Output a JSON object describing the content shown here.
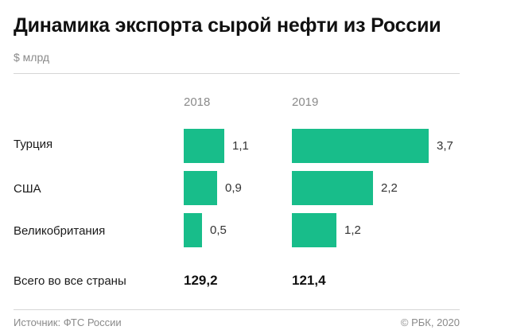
{
  "header": {
    "title": "Динамика экспорта сырой нефти из России",
    "subtitle": "$ млрд"
  },
  "chart_data": {
    "type": "bar",
    "orientation": "horizontal",
    "unit": "$ млрд",
    "categories": [
      "Турция",
      "США",
      "Великобритания"
    ],
    "series": [
      {
        "name": "2018",
        "values": [
          1.1,
          0.9,
          0.5
        ],
        "labels": [
          "1,1",
          "0,9",
          "0,5"
        ]
      },
      {
        "name": "2019",
        "values": [
          3.7,
          2.2,
          1.2
        ],
        "labels": [
          "3,7",
          "2,2",
          "1,2"
        ]
      }
    ],
    "bar_color": "#18bd8a"
  },
  "totals": {
    "label": "Всего во все страны",
    "values": [
      "129,2",
      "121,4"
    ]
  },
  "footer": {
    "source": "Источник: ФТС России",
    "copyright": "© РБК, 2020"
  }
}
